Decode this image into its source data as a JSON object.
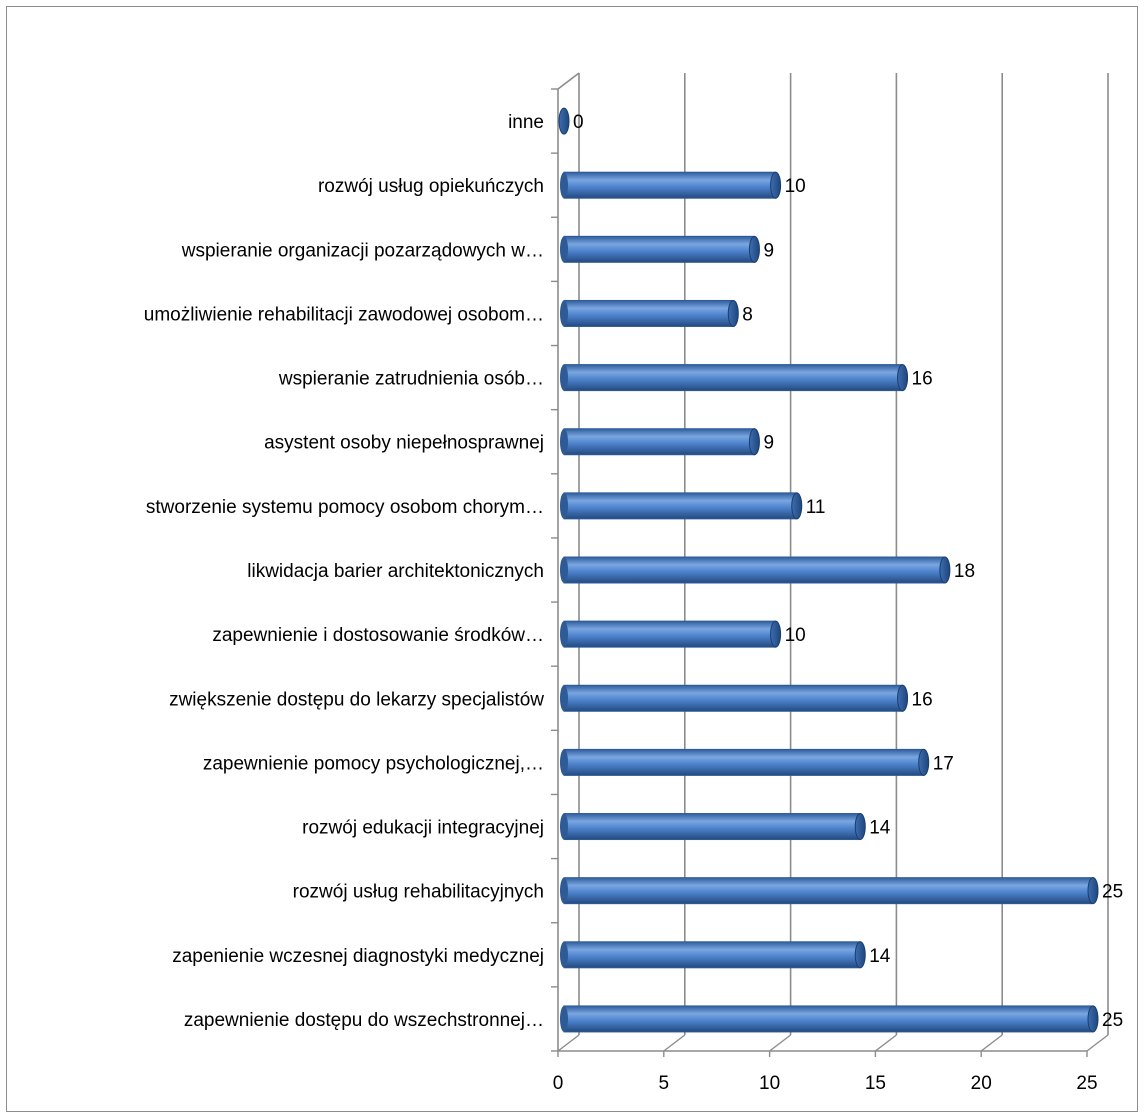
{
  "chart_data": {
    "type": "bar",
    "orientation": "horizontal",
    "style": "3d-cylinder",
    "categories": [
      "zapewnienie dostępu do wszechstronnej…",
      "zapenienie wczesnej diagnostyki medycznej",
      "rozwój usług rehabilitacyjnych",
      "rozwój edukacji integracyjnej",
      "zapewnienie pomocy psychologicznej,…",
      "zwiększenie dostępu do lekarzy specjalistów",
      "zapewnienie i dostosowanie środków…",
      "likwidacja barier architektonicznych",
      "stworzenie systemu pomocy osobom chorym…",
      "asystent osoby niepełnosprawnej",
      "wspieranie zatrudnienia osób…",
      "umożliwienie rehabilitacji zawodowej osobom…",
      "wspieranie organizacji pozarządowych w…",
      "rozwój usług opiekuńczych",
      "inne"
    ],
    "values": [
      25,
      14,
      25,
      14,
      17,
      16,
      10,
      18,
      11,
      9,
      16,
      8,
      9,
      10,
      0
    ],
    "xlim": [
      0,
      25
    ],
    "xticks": [
      0,
      5,
      10,
      15,
      20,
      25
    ],
    "title": "",
    "xlabel": "",
    "ylabel": "",
    "grid": true,
    "legend": "none",
    "bar_color": "#4a7fcb",
    "bar_edge_color": "#2e5a95"
  }
}
